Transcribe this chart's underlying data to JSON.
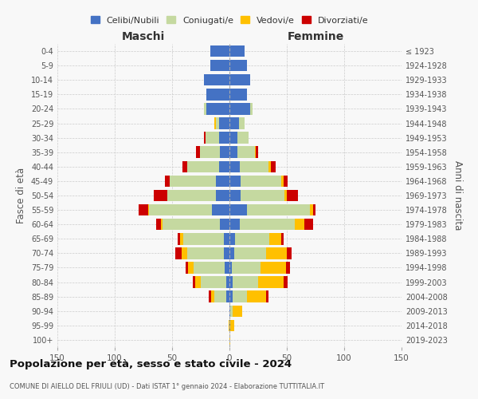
{
  "age_groups": [
    "0-4",
    "5-9",
    "10-14",
    "15-19",
    "20-24",
    "25-29",
    "30-34",
    "35-39",
    "40-44",
    "45-49",
    "50-54",
    "55-59",
    "60-64",
    "65-69",
    "70-74",
    "75-79",
    "80-84",
    "85-89",
    "90-94",
    "95-99",
    "100+"
  ],
  "birth_years": [
    "2019-2023",
    "2014-2018",
    "2009-2013",
    "2004-2008",
    "1999-2003",
    "1994-1998",
    "1989-1993",
    "1984-1988",
    "1979-1983",
    "1974-1978",
    "1969-1973",
    "1964-1968",
    "1959-1963",
    "1954-1958",
    "1949-1953",
    "1944-1948",
    "1939-1943",
    "1934-1938",
    "1929-1933",
    "1924-1928",
    "≤ 1923"
  ],
  "colors": {
    "celibi": "#4472c4",
    "coniugati": "#c5d9a0",
    "vedovi": "#ffc000",
    "divorziati": "#cc0000"
  },
  "maschi": {
    "celibi": [
      17,
      17,
      22,
      20,
      20,
      9,
      9,
      8,
      9,
      12,
      12,
      15,
      8,
      5,
      5,
      4,
      3,
      3,
      0,
      0,
      0
    ],
    "coniugati": [
      0,
      0,
      0,
      0,
      2,
      3,
      12,
      18,
      28,
      40,
      42,
      55,
      50,
      35,
      32,
      27,
      22,
      10,
      0,
      0,
      0
    ],
    "vedovi": [
      0,
      0,
      0,
      0,
      0,
      1,
      0,
      0,
      0,
      0,
      0,
      1,
      2,
      3,
      5,
      5,
      5,
      3,
      0,
      1,
      0
    ],
    "divorziati": [
      0,
      0,
      0,
      0,
      0,
      0,
      1,
      3,
      4,
      4,
      12,
      8,
      4,
      2,
      5,
      2,
      2,
      2,
      0,
      0,
      0
    ]
  },
  "femmine": {
    "celibi": [
      13,
      15,
      18,
      15,
      18,
      8,
      7,
      7,
      9,
      10,
      10,
      15,
      9,
      5,
      4,
      2,
      3,
      3,
      1,
      1,
      0
    ],
    "coniugati": [
      0,
      0,
      0,
      0,
      2,
      5,
      10,
      15,
      25,
      35,
      38,
      55,
      48,
      30,
      28,
      25,
      22,
      12,
      2,
      0,
      0
    ],
    "vedovi": [
      0,
      0,
      0,
      0,
      0,
      0,
      0,
      1,
      2,
      2,
      2,
      3,
      8,
      10,
      18,
      22,
      22,
      17,
      8,
      3,
      1
    ],
    "divorziati": [
      0,
      0,
      0,
      0,
      0,
      0,
      0,
      2,
      4,
      4,
      10,
      2,
      8,
      2,
      4,
      4,
      4,
      2,
      0,
      0,
      0
    ]
  },
  "xlim": 150,
  "title": "Popolazione per età, sesso e stato civile - 2024",
  "subtitle": "COMUNE DI AIELLO DEL FRIULI (UD) - Dati ISTAT 1° gennaio 2024 - Elaborazione TUTTITALIA.IT",
  "xlabel_left": "Maschi",
  "xlabel_right": "Femmine",
  "ylabel_left": "Fasce di età",
  "ylabel_right": "Anni di nascita",
  "legend_labels": [
    "Celibi/Nubili",
    "Coniugati/e",
    "Vedovi/e",
    "Divorziati/e"
  ],
  "bg_color": "#f8f8f8",
  "grid_color": "#cccccc"
}
